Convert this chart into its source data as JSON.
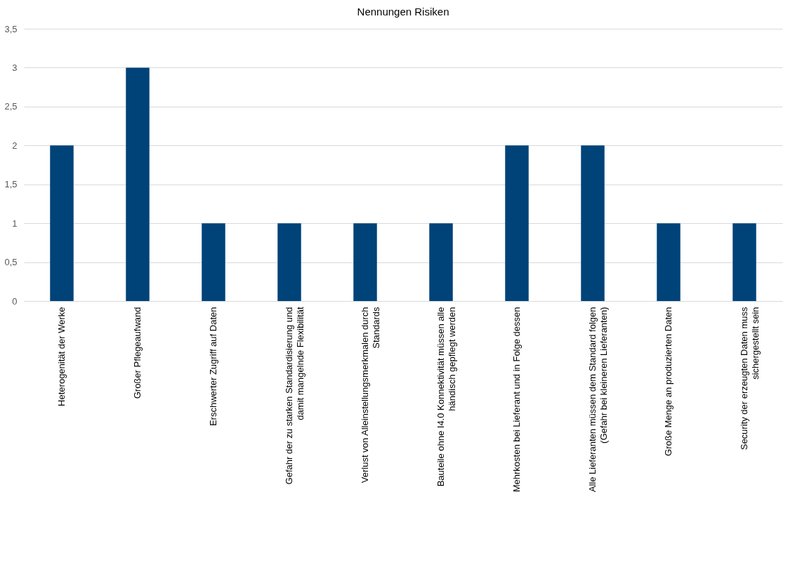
{
  "chart_data": {
    "type": "bar",
    "title": "Nennungen Risiken",
    "categories": [
      "Heterogenität der Werke",
      "Großer Pflegeaufwand",
      "Erschwerter Zugriff auf Daten",
      "Gefahr der zu starken Standardisierung und damit mangelnde Flexibilität",
      "Verlust von Alleinstellungsmerkmalen durch Standards",
      "Bauteile ohne I4.0 Konnektivität müssen alle händisch gepflegt werden",
      "Mehrkosten bei Lieferant und in Folge dessen",
      "Alle Lieferanten müssen dem Standard folgen (Gefahr bei kleineren Lieferanten)",
      "Große Menge an produzierten Daten",
      "Security der erzeugten Daten muss sichergestellt sein"
    ],
    "values": [
      2,
      3,
      1,
      1,
      1,
      1,
      2,
      2,
      1,
      1
    ],
    "color": "#004379",
    "ylim": [
      0,
      3.5
    ],
    "yticks": [
      0,
      {
        "value": 0.5,
        "label": "0,5"
      },
      1,
      {
        "value": 1.5,
        "label": "1,5"
      },
      2,
      {
        "value": 2.5,
        "label": "2,5"
      },
      3,
      {
        "value": 3.5,
        "label": "3,5"
      }
    ],
    "grid": "y"
  }
}
